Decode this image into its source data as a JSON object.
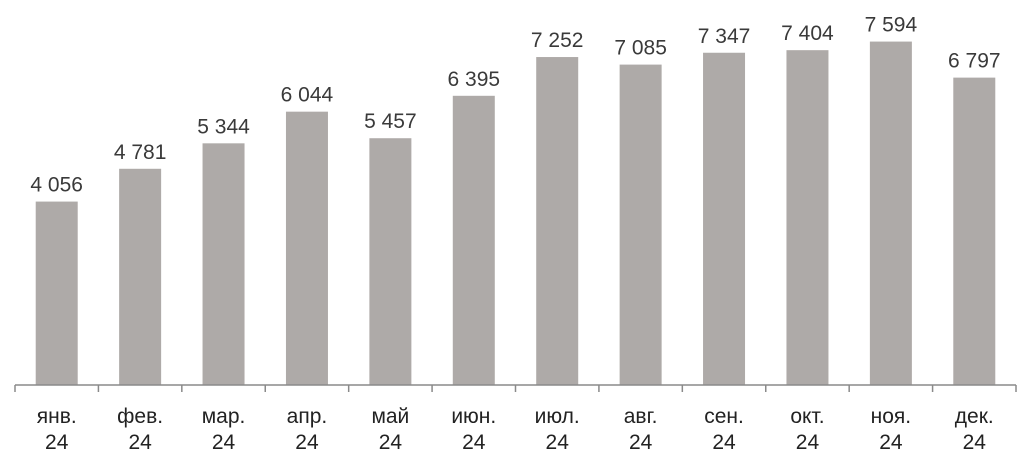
{
  "chart_data": {
    "type": "bar",
    "categories": [
      [
        "янв.",
        "24"
      ],
      [
        "фев.",
        "24"
      ],
      [
        "мар.",
        "24"
      ],
      [
        "апр.",
        "24"
      ],
      [
        "май",
        "24"
      ],
      [
        "июн.",
        "24"
      ],
      [
        "июл.",
        "24"
      ],
      [
        "авг.",
        "24"
      ],
      [
        "сен.",
        "24"
      ],
      [
        "окт.",
        "24"
      ],
      [
        "ноя.",
        "24"
      ],
      [
        "дек.",
        "24"
      ]
    ],
    "values": [
      4056,
      4781,
      5344,
      6044,
      5457,
      6395,
      7252,
      7085,
      7347,
      7404,
      7594,
      6797
    ],
    "data_labels": [
      "4 056",
      "4 781",
      "5 344",
      "6 044",
      "5 457",
      "6 395",
      "7 252",
      "7 085",
      "7 347",
      "7 404",
      "7 594",
      "6 797"
    ],
    "title": "",
    "xlabel": "",
    "ylabel": "",
    "ylim": [
      0,
      7850
    ],
    "grid": false,
    "legend": "none",
    "colors": {
      "bar": "#aeaaa8",
      "axis": "#8a8a8a",
      "label_text": "#3a3a3a",
      "tick_text": "#222222"
    }
  }
}
